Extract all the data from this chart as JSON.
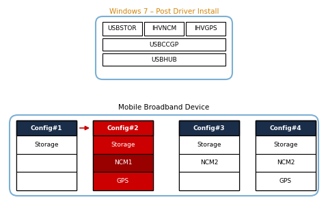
{
  "title_win7": "Windows 7 – Post Driver Install",
  "title_mbd": "Mobile Broadband Device",
  "win7_title_color": "#d4860a",
  "mbd_color": "#7bafd4",
  "config_header_color": "#1a2e4a",
  "config2_header_color": "#cc0000",
  "config2_row_color": "#cc0000",
  "config2_row_dark": "#990000",
  "white": "#ffffff",
  "black": "#000000",
  "bg": "#ffffff",
  "win7_rows": [
    [
      "USBSTOR",
      "IHVNCM",
      "IHVGPS"
    ],
    [
      "USBCCGP"
    ],
    [
      "USBHUB"
    ]
  ],
  "configs": [
    {
      "header": "Config#1",
      "rows": [
        "Storage",
        "",
        ""
      ],
      "highlighted": false
    },
    {
      "header": "Config#2",
      "rows": [
        "Storage",
        "NCM1",
        "GPS"
      ],
      "highlighted": true
    },
    {
      "header": "Config#3",
      "rows": [
        "Storage",
        "NCM2",
        ""
      ],
      "highlighted": false
    },
    {
      "header": "Config#4",
      "rows": [
        "Storage",
        "NCM2",
        "GPS"
      ],
      "highlighted": false
    }
  ],
  "arrow_color": "#cc0000",
  "font_family": "DejaVu Sans"
}
